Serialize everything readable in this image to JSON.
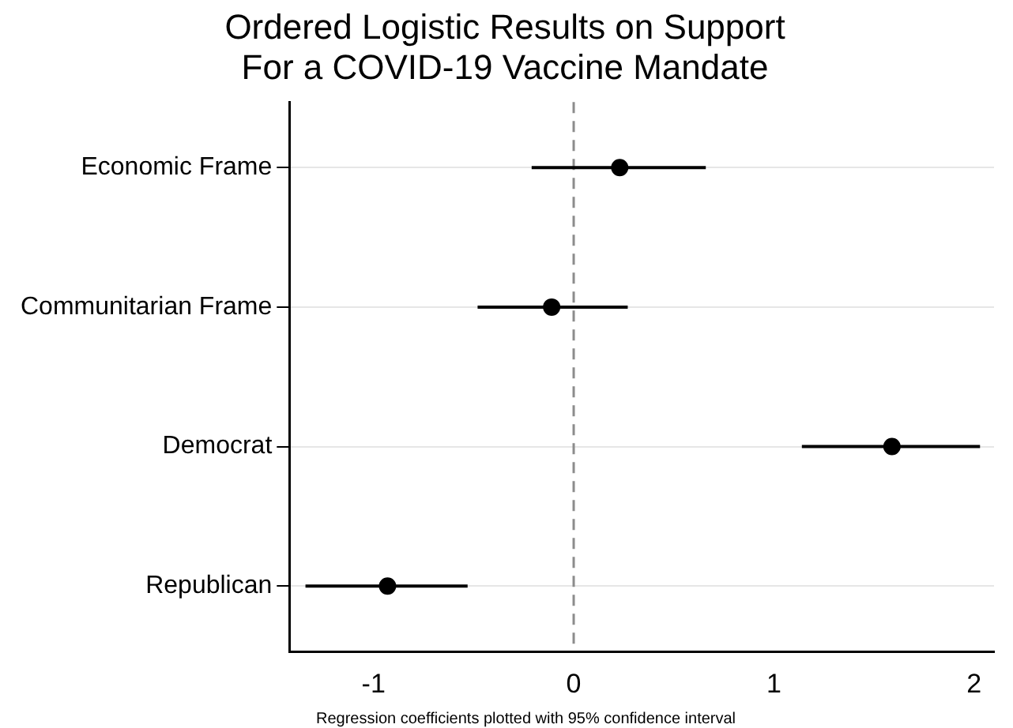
{
  "chart_data": {
    "type": "scatter",
    "orientation": "horizontal",
    "title": "Ordered Logistic Results on Support\nFor a COVID-19 Vaccine Mandate",
    "categories": [
      "Economic Frame",
      "Communitarian Frame",
      "Democrat",
      "Republican"
    ],
    "values": [
      0.23,
      -0.11,
      1.59,
      -0.93
    ],
    "errors": [
      [
        -0.21,
        0.66
      ],
      [
        -0.48,
        0.27
      ],
      [
        1.14,
        2.03
      ],
      [
        -1.34,
        -0.53
      ]
    ],
    "color": "#000000",
    "marker": "circle",
    "xlim": [
      -1.42,
      2.1
    ],
    "xticks": [
      -1,
      0,
      1,
      2
    ],
    "ref_lines": [
      {
        "axis": "x",
        "value": 0,
        "color": "#8c8c8c",
        "line_style": "dashed"
      }
    ],
    "grid": "y",
    "legend": false,
    "annotations": [
      "Regression coefficients plotted with 95% confidence interval"
    ]
  }
}
